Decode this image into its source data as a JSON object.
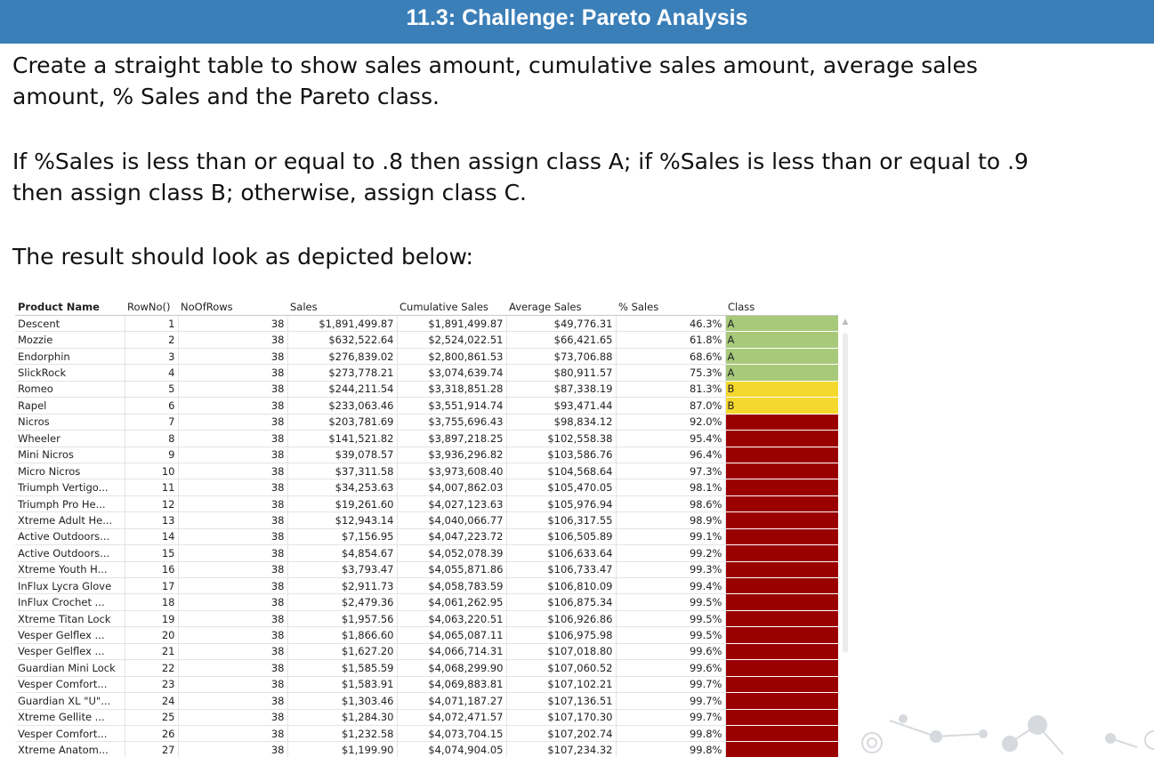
{
  "title": "11.3: Challenge: Pareto Analysis",
  "instructions": {
    "line1": "Create a straight table to show sales amount, cumulative sales amount, average sales",
    "line2": "amount, % Sales and the Pareto class.",
    "line3": "If %Sales is less than or equal to .8 then assign class A; if %Sales is less than or equal to .9",
    "line4": "then assign class B; otherwise, assign class C.",
    "line5": "The result should look as depicted below:"
  },
  "table": {
    "headers": [
      "Product Name",
      "RowNo()",
      "NoOfRows",
      "Sales",
      "Cumulative Sales",
      "Average Sales",
      "% Sales",
      "Class"
    ],
    "class_colors": {
      "A": "#a8c97a",
      "B": "#f5d82e",
      "C": "#9a0000"
    },
    "rows": [
      [
        "Descent",
        "1",
        "38",
        "$1,891,499.87",
        "$1,891,499.87",
        "$49,776.31",
        "46.3%",
        "A"
      ],
      [
        "Mozzie",
        "2",
        "38",
        "$632,522.64",
        "$2,524,022.51",
        "$66,421.65",
        "61.8%",
        "A"
      ],
      [
        "Endorphin",
        "3",
        "38",
        "$276,839.02",
        "$2,800,861.53",
        "$73,706.88",
        "68.6%",
        "A"
      ],
      [
        "SlickRock",
        "4",
        "38",
        "$273,778.21",
        "$3,074,639.74",
        "$80,911.57",
        "75.3%",
        "A"
      ],
      [
        "Romeo",
        "5",
        "38",
        "$244,211.54",
        "$3,318,851.28",
        "$87,338.19",
        "81.3%",
        "B"
      ],
      [
        "Rapel",
        "6",
        "38",
        "$233,063.46",
        "$3,551,914.74",
        "$93,471.44",
        "87.0%",
        "B"
      ],
      [
        "Nicros",
        "7",
        "38",
        "$203,781.69",
        "$3,755,696.43",
        "$98,834.12",
        "92.0%",
        ""
      ],
      [
        "Wheeler",
        "8",
        "38",
        "$141,521.82",
        "$3,897,218.25",
        "$102,558.38",
        "95.4%",
        ""
      ],
      [
        "Mini Nicros",
        "9",
        "38",
        "$39,078.57",
        "$3,936,296.82",
        "$103,586.76",
        "96.4%",
        ""
      ],
      [
        "Micro Nicros",
        "10",
        "38",
        "$37,311.58",
        "$3,973,608.40",
        "$104,568.64",
        "97.3%",
        ""
      ],
      [
        "Triumph Vertigo...",
        "11",
        "38",
        "$34,253.63",
        "$4,007,862.03",
        "$105,470.05",
        "98.1%",
        ""
      ],
      [
        "Triumph Pro He...",
        "12",
        "38",
        "$19,261.60",
        "$4,027,123.63",
        "$105,976.94",
        "98.6%",
        ""
      ],
      [
        "Xtreme Adult He...",
        "13",
        "38",
        "$12,943.14",
        "$4,040,066.77",
        "$106,317.55",
        "98.9%",
        ""
      ],
      [
        "Active Outdoors...",
        "14",
        "38",
        "$7,156.95",
        "$4,047,223.72",
        "$106,505.89",
        "99.1%",
        ""
      ],
      [
        "Active Outdoors...",
        "15",
        "38",
        "$4,854.67",
        "$4,052,078.39",
        "$106,633.64",
        "99.2%",
        ""
      ],
      [
        "Xtreme Youth H...",
        "16",
        "38",
        "$3,793.47",
        "$4,055,871.86",
        "$106,733.47",
        "99.3%",
        ""
      ],
      [
        "InFlux Lycra Glove",
        "17",
        "38",
        "$2,911.73",
        "$4,058,783.59",
        "$106,810.09",
        "99.4%",
        ""
      ],
      [
        "InFlux Crochet ...",
        "18",
        "38",
        "$2,479.36",
        "$4,061,262.95",
        "$106,875.34",
        "99.5%",
        ""
      ],
      [
        "Xtreme Titan Lock",
        "19",
        "38",
        "$1,957.56",
        "$4,063,220.51",
        "$106,926.86",
        "99.5%",
        ""
      ],
      [
        "Vesper Gelflex ...",
        "20",
        "38",
        "$1,866.60",
        "$4,065,087.11",
        "$106,975.98",
        "99.5%",
        ""
      ],
      [
        "Vesper Gelflex ...",
        "21",
        "38",
        "$1,627.20",
        "$4,066,714.31",
        "$107,018.80",
        "99.6%",
        ""
      ],
      [
        "Guardian Mini Lock",
        "22",
        "38",
        "$1,585.59",
        "$4,068,299.90",
        "$107,060.52",
        "99.6%",
        ""
      ],
      [
        "Vesper Comfort...",
        "23",
        "38",
        "$1,583.91",
        "$4,069,883.81",
        "$107,102.21",
        "99.7%",
        ""
      ],
      [
        "Guardian XL \"U\"...",
        "24",
        "38",
        "$1,303.46",
        "$4,071,187.27",
        "$107,136.51",
        "99.7%",
        ""
      ],
      [
        "Xtreme Gellite ...",
        "25",
        "38",
        "$1,284.30",
        "$4,072,471.57",
        "$107,170.30",
        "99.7%",
        ""
      ],
      [
        "Vesper Comfort...",
        "26",
        "38",
        "$1,232.58",
        "$4,073,704.15",
        "$107,202.74",
        "99.8%",
        ""
      ],
      [
        "Xtreme Anatom...",
        "27",
        "38",
        "$1,199.90",
        "$4,074,904.05",
        "$107,234.32",
        "99.8%",
        ""
      ]
    ]
  },
  "scrollbar": {
    "up_icon": "scroll-up-arrow-icon"
  }
}
